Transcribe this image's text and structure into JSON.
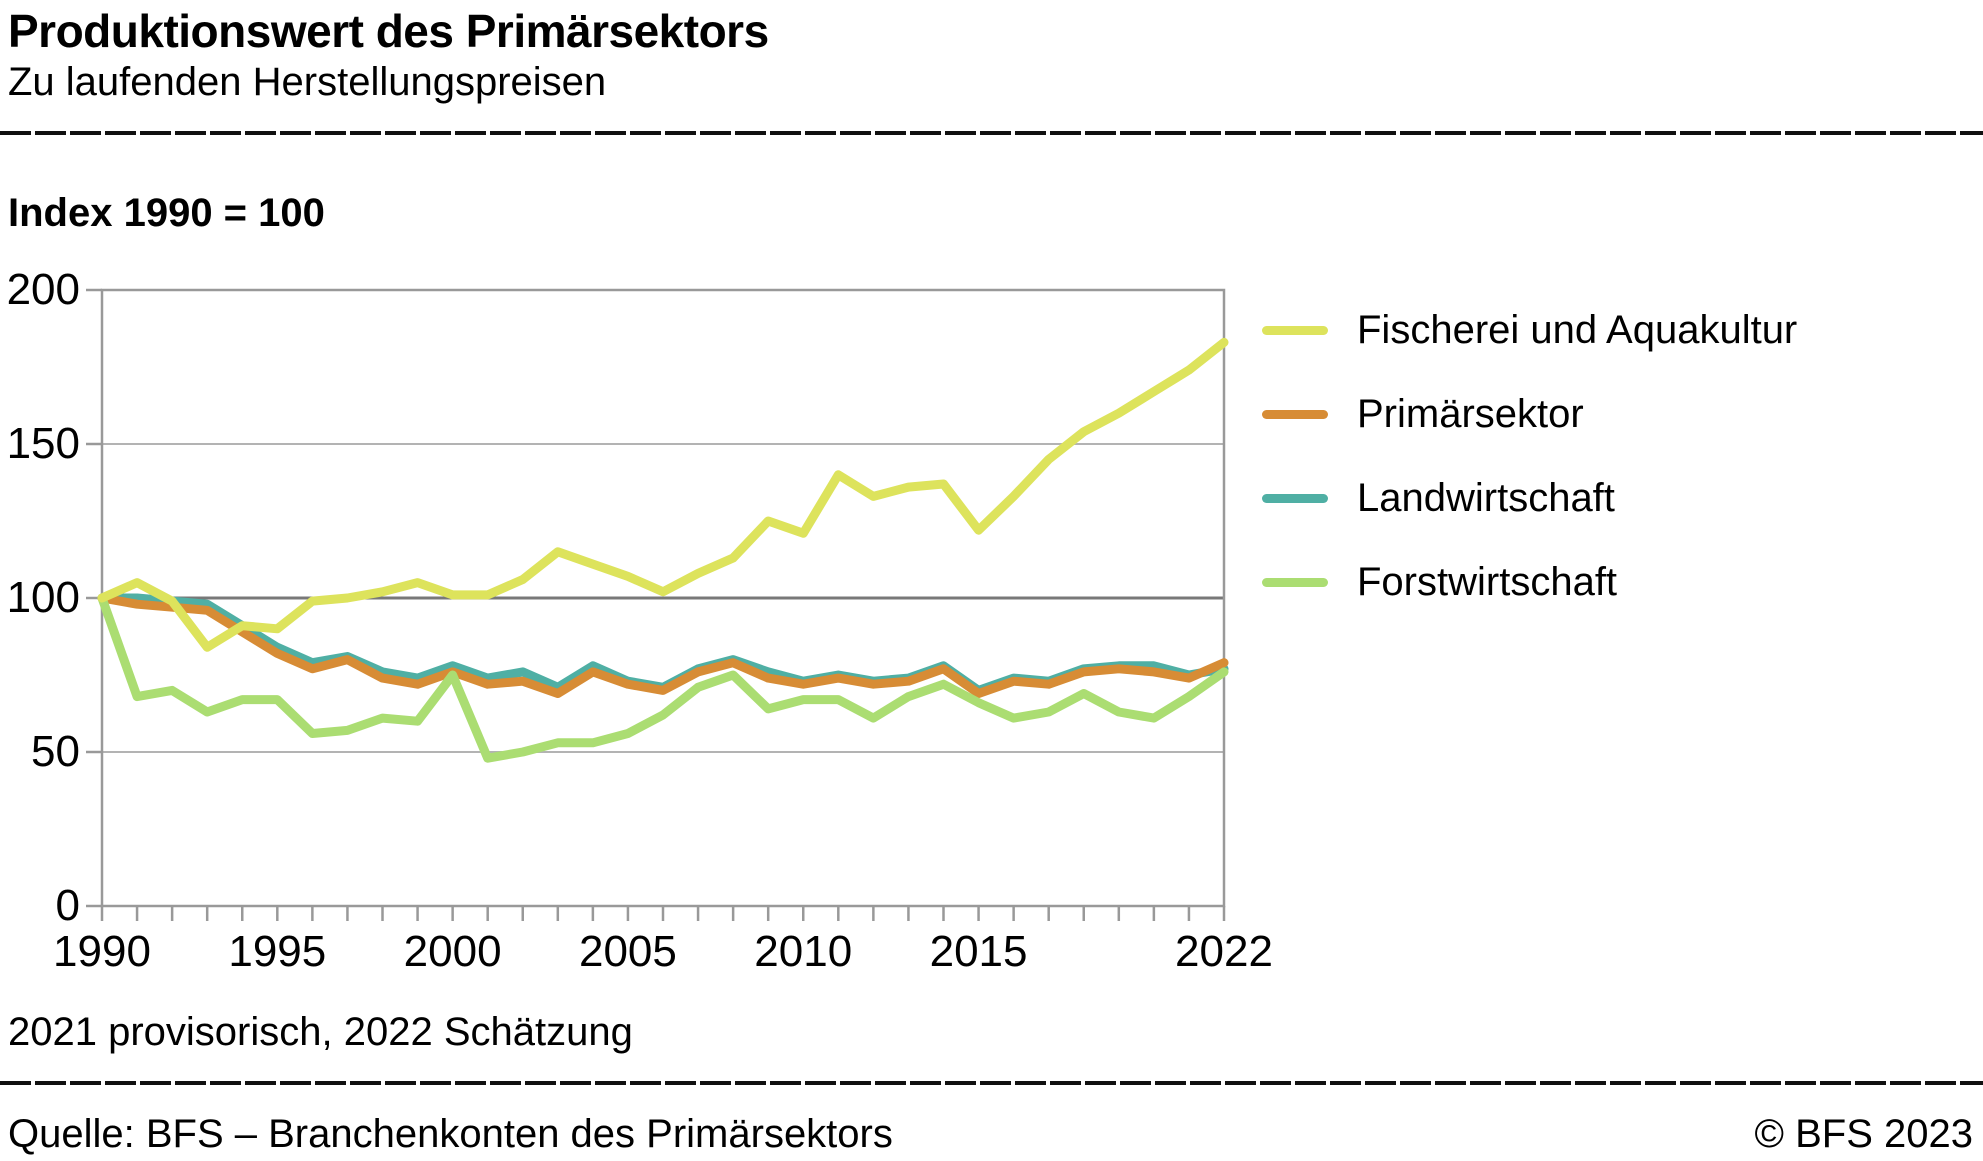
{
  "header": {
    "title": "Produktionswert des Primärsektors",
    "subtitle": "Zu laufenden Herstellungspreisen"
  },
  "index_label": "Index 1990 = 100",
  "footnote": "2021 provisorisch, 2022 Schätzung",
  "footer": {
    "source": "Quelle: BFS – Branchenkonten des Primärsektors",
    "copyright": "© BFS 2023"
  },
  "colors": {
    "fischerei": "#dde35c",
    "primaersektor": "#d78c35",
    "landwirtschaft": "#4fafa4",
    "forstwirtschaft": "#abdd72",
    "grid_light": "#b3b3b3",
    "grid_dark": "#787878",
    "axis": "#999999",
    "text": "#000000",
    "rule": "#101010"
  },
  "chart_data": {
    "type": "line",
    "title": "Produktionswert des Primärsektors",
    "xlabel": "",
    "ylabel": "Index 1990 = 100",
    "ylim": [
      0,
      200
    ],
    "yticks": [
      0,
      50,
      100,
      150,
      200
    ],
    "baseline_value": 100,
    "grid": "horizontal",
    "legend_position": "right",
    "x": [
      1990,
      1991,
      1992,
      1993,
      1994,
      1995,
      1996,
      1997,
      1998,
      1999,
      2000,
      2001,
      2002,
      2003,
      2004,
      2005,
      2006,
      2007,
      2008,
      2009,
      2010,
      2011,
      2012,
      2013,
      2014,
      2015,
      2016,
      2017,
      2018,
      2019,
      2020,
      2021,
      2022
    ],
    "xtick_positions": [
      1990,
      1995,
      2000,
      2005,
      2010,
      2015,
      2022
    ],
    "xtick_labels": [
      "1990",
      "1995",
      "2000",
      "2005",
      "2010",
      "2015",
      "2022"
    ],
    "series": [
      {
        "name": "Fischerei und Aquakultur",
        "color_key": "fischerei",
        "values": [
          100,
          105,
          99,
          84,
          91,
          90,
          99,
          100,
          102,
          105,
          101,
          101,
          106,
          115,
          111,
          107,
          102,
          108,
          113,
          125,
          121,
          140,
          133,
          136,
          137,
          122,
          133,
          145,
          154,
          160,
          167,
          174,
          183
        ]
      },
      {
        "name": "Primärsektor",
        "color_key": "primaersektor",
        "values": [
          100,
          98,
          97,
          96,
          89,
          82,
          77,
          80,
          74,
          72,
          76,
          72,
          73,
          69,
          76,
          72,
          70,
          76,
          79,
          74,
          72,
          74,
          72,
          73,
          77,
          69,
          73,
          72,
          76,
          77,
          76,
          74,
          79
        ]
      },
      {
        "name": "Landwirtschaft",
        "color_key": "landwirtschaft",
        "values": [
          100,
          100,
          99,
          98,
          91,
          84,
          79,
          81,
          76,
          74,
          78,
          74,
          76,
          71,
          78,
          73,
          71,
          77,
          80,
          76,
          73,
          75,
          73,
          74,
          78,
          70,
          74,
          73,
          77,
          78,
          78,
          75,
          77
        ]
      },
      {
        "name": "Forstwirtschaft",
        "color_key": "forstwirtschaft",
        "values": [
          100,
          68,
          70,
          63,
          67,
          67,
          56,
          57,
          61,
          60,
          75,
          48,
          50,
          53,
          53,
          56,
          62,
          71,
          75,
          64,
          67,
          67,
          61,
          68,
          72,
          66,
          61,
          63,
          69,
          63,
          61,
          68,
          76
        ]
      }
    ]
  }
}
